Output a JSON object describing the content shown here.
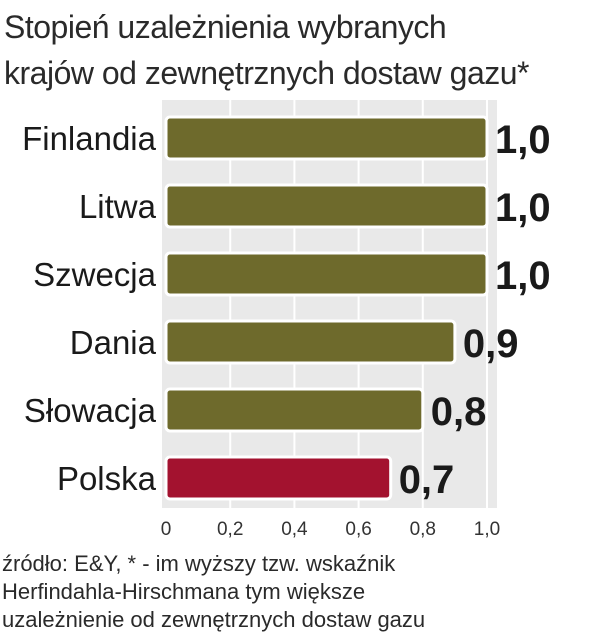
{
  "title_lines": [
    "Stopień uzależnienia wybranych",
    "krajów od zewnętrznych dostaw gazu*"
  ],
  "source_lines": [
    "źródło: E&Y, * - im wyższy tzw. wskaźnik",
    "Herfindahla-Hirschmana tym większe",
    "uzależnienie od zewnętrznych dostaw gazu"
  ],
  "colors": {
    "default_bar": "#6e6a2c",
    "highlight_bar": "#a3122f",
    "plot_bg": "#e9e9e9",
    "gridline": "#ffffff"
  },
  "chart_data": {
    "type": "bar",
    "orientation": "horizontal",
    "title": "Stopień uzależnienia wybranych krajów od zewnętrznych dostaw gazu*",
    "categories": [
      "Finlandia",
      "Litwa",
      "Szwecja",
      "Dania",
      "Słowacja",
      "Polska"
    ],
    "values": [
      1.0,
      1.0,
      1.0,
      0.9,
      0.8,
      0.7
    ],
    "value_labels": [
      "1,0",
      "1,0",
      "1,0",
      "0,9",
      "0,8",
      "0,7"
    ],
    "highlight": "Polska",
    "xlim": [
      0,
      1.0
    ],
    "xticks": [
      0,
      0.2,
      0.4,
      0.6,
      0.8,
      1.0
    ],
    "xtick_labels": [
      "0",
      "0,2",
      "0,4",
      "0,6",
      "0,8",
      "1,0"
    ],
    "xlabel": "",
    "ylabel": "",
    "grid": true,
    "legend": "none"
  }
}
